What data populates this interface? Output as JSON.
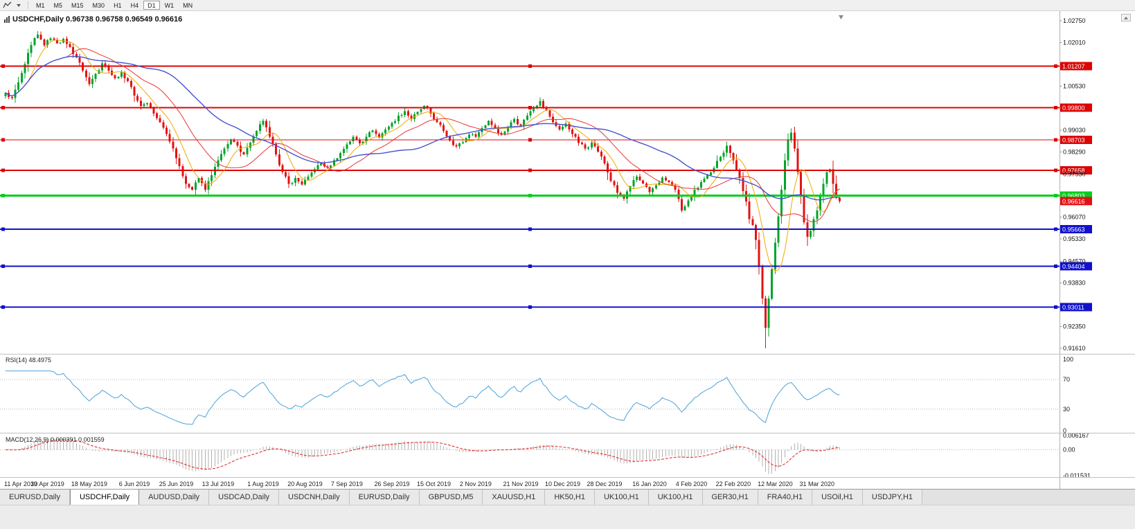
{
  "toolbar": {
    "timeframes": [
      "M1",
      "M5",
      "M15",
      "M30",
      "H1",
      "H4",
      "D1",
      "W1",
      "MN"
    ],
    "active": "D1"
  },
  "chart": {
    "title": "USDCHF,Daily 0.96738 0.96758 0.96549 0.96616",
    "symbol": "USDCHF",
    "period": "Daily",
    "open": "0.96738",
    "high": "0.96758",
    "low": "0.96549",
    "close": "0.96616",
    "colors": {
      "background": "#ffffff",
      "bull": "#00a42a",
      "bear": "#e31212",
      "ma_fast": "#efa800",
      "ma_mid": "#e53535",
      "ma_slow": "#4553cd"
    },
    "hlines": [
      {
        "label": "1.01207",
        "value": 1.01207,
        "color": "#dd0404",
        "width": 2
      },
      {
        "label": "0.99800",
        "value": 0.998,
        "color": "#dd0404",
        "width": 2
      },
      {
        "label": "0.98703",
        "value": 0.98703,
        "color": "#dd0404",
        "width": 1
      },
      {
        "label": "0.97658",
        "value": 0.97658,
        "color": "#dd0404",
        "width": 2
      },
      {
        "label": "0.96803",
        "value": 0.96803,
        "color": "#00ce1b",
        "width": 3
      },
      {
        "label": "0.95663",
        "value": 0.95663,
        "color": "#1111cc",
        "width": 2
      },
      {
        "label": "0.94404",
        "value": 0.94404,
        "color": "#1111cc",
        "width": 2
      },
      {
        "label": "0.93011",
        "value": 0.93011,
        "color": "#1111cc",
        "width": 2
      }
    ]
  },
  "price_axis": {
    "ticks": [
      "1.02750",
      "1.02010",
      "1.00530",
      "0.99030",
      "0.98290",
      "0.97530",
      "0.96070",
      "0.95330",
      "0.94570",
      "0.93830",
      "0.92350",
      "0.91610"
    ],
    "current": {
      "text": "0.96616",
      "color": "#e31212"
    }
  },
  "rsi": {
    "label": "RSI(14) 48.4975",
    "name": "RSI",
    "period": "14",
    "value": "48.4975",
    "ticks": [
      "100",
      "70",
      "30",
      "0"
    ],
    "levels": [
      70,
      30
    ],
    "color": "#4aa0d8"
  },
  "macd": {
    "label": "MACD(12,26,9) 0.000391 0.001559",
    "name": "MACD",
    "params": "12,26,9",
    "values": [
      "0.000391",
      "0.001559"
    ],
    "ticks": [
      {
        "text": "0.006167",
        "value": 0.006167
      },
      {
        "text": "0.00",
        "value": 0
      },
      {
        "text": "-0.011531",
        "value": -0.011531
      }
    ],
    "histogram_color": "#b0b0b0",
    "signal_color": "#e02020"
  },
  "dates": {
    "labels": [
      "11 Apr 2019",
      "30 Apr 2019",
      "18 May 2019",
      "6 Jun 2019",
      "25 Jun 2019",
      "13 Jul 2019",
      "1 Aug 2019",
      "20 Aug 2019",
      "7 Sep 2019",
      "26 Sep 2019",
      "15 Oct 2019",
      "2 Nov 2019",
      "21 Nov 2019",
      "10 Dec 2019",
      "28 Dec 2019",
      "16 Jan 2020",
      "4 Feb 2020",
      "22 Feb 2020",
      "12 Mar 2020",
      "31 Mar 2020"
    ],
    "bar_indices": [
      0,
      13,
      26,
      40,
      53,
      66,
      80,
      93,
      106,
      120,
      133,
      146,
      160,
      173,
      186,
      200,
      213,
      226,
      239,
      252
    ]
  },
  "tabs": {
    "items": [
      "EURUSD,Daily",
      "USDCHF,Daily",
      "AUDUSD,Daily",
      "USDCAD,Daily",
      "USDCNH,Daily",
      "EURUSD,Daily",
      "GBPUSD,M5",
      "XAUUSD,H1",
      "HK50,H1",
      "UK100,H1",
      "UK100,H1",
      "GER30,H1",
      "FRA40,H1",
      "USOil,H1",
      "USDJPY,H1"
    ],
    "active_index": 1
  },
  "chart_data": {
    "type": "candlestick",
    "symbol": "USDCHF",
    "timeframe": "Daily",
    "bar_count": 260,
    "price_axis_top": 1.02938,
    "price_axis_bottom": 0.91422,
    "key_points": [
      [
        0,
        1.003
      ],
      [
        2,
        1.0012
      ],
      [
        4,
        1.0065
      ],
      [
        6,
        1.0128
      ],
      [
        8,
        1.0192
      ],
      [
        10,
        1.0228
      ],
      [
        12,
        1.0192
      ],
      [
        14,
        1.0215
      ],
      [
        16,
        1.0198
      ],
      [
        18,
        1.0214
      ],
      [
        20,
        1.0185
      ],
      [
        22,
        1.015
      ],
      [
        24,
        1.0105
      ],
      [
        26,
        1.006
      ],
      [
        28,
        1.0095
      ],
      [
        30,
        1.013
      ],
      [
        32,
        1.0105
      ],
      [
        34,
        1.008
      ],
      [
        36,
        1.01
      ],
      [
        38,
        1.007
      ],
      [
        40,
        1.002
      ],
      [
        42,
        0.9985
      ],
      [
        44,
        0.9995
      ],
      [
        46,
        0.996
      ],
      [
        48,
        0.993
      ],
      [
        50,
        0.989
      ],
      [
        52,
        0.984
      ],
      [
        54,
        0.978
      ],
      [
        56,
        0.972
      ],
      [
        58,
        0.97
      ],
      [
        60,
        0.974
      ],
      [
        62,
        0.97
      ],
      [
        64,
        0.975
      ],
      [
        66,
        0.98
      ],
      [
        68,
        0.984
      ],
      [
        70,
        0.987
      ],
      [
        72,
        0.985
      ],
      [
        74,
        0.982
      ],
      [
        76,
        0.986
      ],
      [
        78,
        0.99
      ],
      [
        80,
        0.9935
      ],
      [
        82,
        0.988
      ],
      [
        84,
        0.982
      ],
      [
        86,
        0.976
      ],
      [
        88,
        0.972
      ],
      [
        90,
        0.974
      ],
      [
        92,
        0.9718
      ],
      [
        94,
        0.9745
      ],
      [
        96,
        0.977
      ],
      [
        98,
        0.979
      ],
      [
        100,
        0.9775
      ],
      [
        102,
        0.98
      ],
      [
        104,
        0.9825
      ],
      [
        106,
        0.9855
      ],
      [
        108,
        0.988
      ],
      [
        110,
        0.9858
      ],
      [
        112,
        0.988
      ],
      [
        114,
        0.9902
      ],
      [
        116,
        0.9878
      ],
      [
        118,
        0.9905
      ],
      [
        120,
        0.9928
      ],
      [
        122,
        0.9952
      ],
      [
        124,
        0.9968
      ],
      [
        126,
        0.994
      ],
      [
        128,
        0.9965
      ],
      [
        130,
        0.9985
      ],
      [
        132,
        0.996
      ],
      [
        134,
        0.993
      ],
      [
        136,
        0.99
      ],
      [
        138,
        0.9868
      ],
      [
        140,
        0.9848
      ],
      [
        142,
        0.9862
      ],
      [
        144,
        0.9888
      ],
      [
        146,
        0.988
      ],
      [
        148,
        0.991
      ],
      [
        150,
        0.9935
      ],
      [
        152,
        0.991
      ],
      [
        154,
        0.9888
      ],
      [
        156,
        0.9915
      ],
      [
        158,
        0.994
      ],
      [
        160,
        0.9918
      ],
      [
        162,
        0.9952
      ],
      [
        164,
        0.998
      ],
      [
        166,
        1.0002
      ],
      [
        168,
        0.997
      ],
      [
        170,
        0.993
      ],
      [
        172,
        0.9905
      ],
      [
        174,
        0.9925
      ],
      [
        176,
        0.989
      ],
      [
        178,
        0.986
      ],
      [
        180,
        0.984
      ],
      [
        182,
        0.986
      ],
      [
        184,
        0.983
      ],
      [
        186,
        0.979
      ],
      [
        188,
        0.973
      ],
      [
        190,
        0.969
      ],
      [
        192,
        0.967
      ],
      [
        194,
        0.9712
      ],
      [
        196,
        0.9745
      ],
      [
        198,
        0.9722
      ],
      [
        200,
        0.9692
      ],
      [
        202,
        0.9716
      ],
      [
        204,
        0.9742
      ],
      [
        206,
        0.9726
      ],
      [
        208,
        0.97
      ],
      [
        210,
        0.963
      ],
      [
        212,
        0.9664
      ],
      [
        214,
        0.97
      ],
      [
        216,
        0.9726
      ],
      [
        218,
        0.975
      ],
      [
        220,
        0.9775
      ],
      [
        222,
        0.9812
      ],
      [
        224,
        0.985
      ],
      [
        226,
        0.98
      ],
      [
        228,
        0.974
      ],
      [
        230,
        0.966
      ],
      [
        231,
        0.96
      ],
      [
        232,
        0.958
      ],
      [
        233,
        0.953
      ],
      [
        234,
        0.944
      ],
      [
        235,
        0.933
      ],
      [
        236,
        0.923
      ],
      [
        237,
        0.933
      ],
      [
        238,
        0.943
      ],
      [
        239,
        0.952
      ],
      [
        240,
        0.961
      ],
      [
        241,
        0.97
      ],
      [
        242,
        0.98
      ],
      [
        243,
        0.987
      ],
      [
        244,
        0.9895
      ],
      [
        245,
        0.984
      ],
      [
        246,
        0.976
      ],
      [
        247,
        0.968
      ],
      [
        248,
        0.959
      ],
      [
        249,
        0.954
      ],
      [
        250,
        0.956
      ],
      [
        251,
        0.96
      ],
      [
        252,
        0.963
      ],
      [
        253,
        0.968
      ],
      [
        254,
        0.972
      ],
      [
        255,
        0.976
      ],
      [
        256,
        0.977
      ],
      [
        257,
        0.972
      ],
      [
        258,
        0.968
      ],
      [
        259,
        0.96616
      ]
    ],
    "wick_low_overrides": {
      "236": 0.9161
    },
    "wick_high_overrides": {
      "10": 1.024,
      "166": 1.0015,
      "244": 0.9905
    },
    "last_candle": {
      "open": 0.96738,
      "high": 0.96758,
      "low": 0.96549,
      "close": 0.96616
    },
    "moving_averages": [
      {
        "period": 8,
        "color": "#efa800"
      },
      {
        "period": 20,
        "color": "#e53535"
      },
      {
        "period": 45,
        "color": "#4553cd"
      }
    ],
    "indicators": [
      {
        "name": "RSI",
        "period": 14,
        "value": 48.4975,
        "levels": [
          70,
          30
        ]
      },
      {
        "name": "MACD",
        "fast": 12,
        "slow": 26,
        "signal": 9,
        "values": [
          0.000391,
          0.001559
        ],
        "scale_max": 0.006167,
        "scale_min": -0.011531
      }
    ]
  }
}
